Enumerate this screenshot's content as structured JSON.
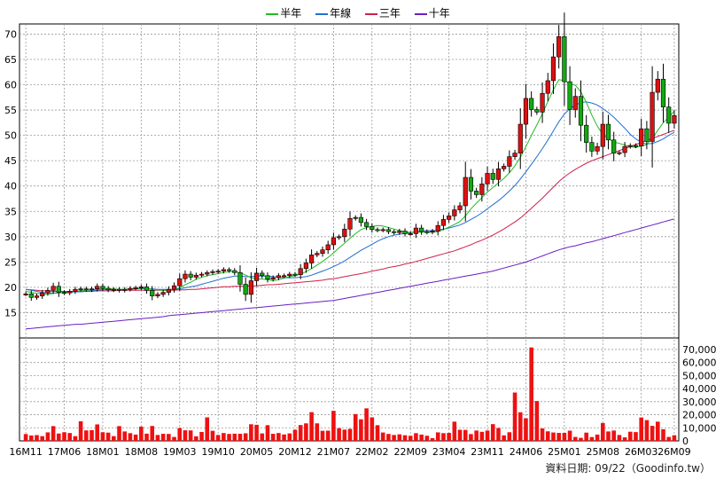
{
  "chart_data": {
    "type": "candlestick",
    "legend": [
      {
        "label": "半年",
        "color": "#22bb22"
      },
      {
        "label": "年線",
        "color": "#1f6fd0"
      },
      {
        "label": "三年",
        "color": "#d0204a"
      },
      {
        "label": "十年",
        "color": "#6a1fc0"
      }
    ],
    "price_axis": {
      "ylim": [
        10,
        72
      ],
      "ticks": [
        15,
        20,
        25,
        30,
        35,
        40,
        45,
        50,
        55,
        60,
        65,
        70
      ]
    },
    "volume_axis": {
      "ylim": [
        0,
        72000
      ],
      "ticks": [
        "0",
        "10,000",
        "20,000",
        "30,000",
        "40,000",
        "50,000",
        "60,000",
        "70,000"
      ],
      "tick_values": [
        0,
        10000,
        20000,
        30000,
        40000,
        50000,
        60000,
        70000
      ]
    },
    "x_labels": [
      "16M11",
      "17M06",
      "18M01",
      "18M08",
      "19M03",
      "19M10",
      "20M05",
      "20M12",
      "21M07",
      "22M02",
      "22M09",
      "23M04",
      "23M11",
      "24M06",
      "25M01",
      "25M08",
      "26M03",
      "26M09"
    ],
    "months": [
      "16M11",
      "16M12",
      "17M01",
      "17M02",
      "17M03",
      "17M04",
      "17M05",
      "17M06",
      "17M07",
      "17M08",
      "17M09",
      "17M10",
      "17M11",
      "17M12",
      "18M01",
      "18M02",
      "18M03",
      "18M04",
      "18M05",
      "18M06",
      "18M07",
      "18M08",
      "18M09",
      "18M10",
      "18M11",
      "18M12",
      "19M01",
      "19M02",
      "19M03",
      "19M04",
      "19M05",
      "19M06",
      "19M07",
      "19M08",
      "19M09",
      "19M10",
      "19M11",
      "19M12",
      "20M01",
      "20M02",
      "20M03",
      "20M04",
      "20M05",
      "20M06",
      "20M07",
      "20M08",
      "20M09",
      "20M10",
      "20M11",
      "20M12",
      "21M01",
      "21M02",
      "21M03",
      "21M04",
      "21M05",
      "21M06",
      "21M07",
      "21M08",
      "21M09",
      "21M10",
      "21M11",
      "21M12",
      "22M01",
      "22M02",
      "22M03",
      "22M04",
      "22M05",
      "22M06",
      "22M07",
      "22M08",
      "22M09",
      "22M10",
      "22M11",
      "22M12",
      "23M01",
      "23M02",
      "23M03",
      "23M04",
      "23M05",
      "23M06",
      "23M07",
      "23M08",
      "23M09",
      "23M10",
      "23M11",
      "23M12",
      "24M01",
      "24M02",
      "24M03",
      "24M04",
      "24M05",
      "24M06",
      "24M07",
      "24M08",
      "24M09",
      "24M10",
      "24M11",
      "24M12",
      "25M01",
      "25M02",
      "25M03",
      "25M04",
      "25M05",
      "25M06",
      "25M07",
      "25M08",
      "25M09",
      "25M10",
      "25M11",
      "25M12",
      "26M01",
      "26M02",
      "26M03",
      "26M04",
      "26M05",
      "26M06",
      "26M07",
      "26M08",
      "26M09"
    ],
    "close": [
      18.7,
      18.0,
      18.3,
      18.9,
      19.4,
      20.2,
      19.0,
      18.9,
      19.2,
      19.6,
      19.7,
      19.5,
      19.7,
      20.2,
      19.8,
      19.5,
      19.6,
      19.4,
      19.6,
      19.8,
      19.9,
      20.1,
      19.4,
      18.3,
      18.6,
      19.0,
      19.6,
      20.3,
      21.7,
      22.6,
      22.0,
      22.4,
      22.6,
      22.9,
      23.1,
      23.2,
      23.5,
      23.3,
      22.9,
      20.6,
      18.6,
      21.3,
      22.8,
      22.3,
      21.6,
      21.9,
      22.3,
      22.3,
      22.6,
      22.5,
      23.7,
      24.8,
      26.4,
      26.7,
      27.4,
      28.4,
      29.8,
      30.0,
      31.5,
      33.6,
      33.8,
      32.8,
      32.0,
      31.4,
      31.3,
      31.4,
      31.0,
      30.8,
      31.1,
      30.6,
      30.6,
      31.7,
      31.0,
      30.9,
      31.1,
      32.2,
      33.4,
      34.1,
      35.3,
      36.1,
      41.7,
      39.0,
      38.3,
      40.4,
      42.5,
      41.3,
      43.4,
      43.9,
      45.8,
      46.5,
      52.2,
      57.3,
      55.1,
      54.6,
      58.3,
      60.8,
      65.5,
      69.5,
      60.6,
      55.1,
      57.7,
      52.0,
      48.6,
      46.9,
      47.8,
      52.2,
      49.1,
      46.5,
      46.6,
      47.8,
      48.0,
      47.9,
      51.3,
      48.8,
      58.5,
      61.1,
      55.6,
      52.4,
      53.9
    ],
    "volume": [
      5200,
      4100,
      4400,
      3600,
      6500,
      11300,
      5600,
      6600,
      6000,
      3600,
      15000,
      8000,
      8200,
      12600,
      6600,
      6300,
      3600,
      11300,
      7200,
      5900,
      4800,
      10900,
      5500,
      11400,
      4500,
      5400,
      5300,
      3000,
      9800,
      8100,
      8000,
      3500,
      6800,
      18000,
      7700,
      4500,
      6000,
      5300,
      5500,
      5400,
      5800,
      12700,
      12300,
      5700,
      12000,
      5400,
      6000,
      4900,
      5700,
      8500,
      12100,
      13400,
      22000,
      13400,
      7700,
      7800,
      23000,
      9700,
      8600,
      9200,
      20500,
      16500,
      24900,
      18000,
      12000,
      6400,
      5300,
      4500,
      5000,
      4300,
      3900,
      5900,
      4800,
      3900,
      2100,
      6500,
      5900,
      6100,
      14700,
      8500,
      8400,
      5200,
      7900,
      6900,
      7900,
      12800,
      9800,
      4200,
      6600,
      37000,
      21900,
      17300,
      71500,
      30500,
      9500,
      7300,
      6400,
      6100,
      6100,
      7800,
      3000,
      2300,
      6300,
      2900,
      4800,
      13700,
      7200,
      7900,
      4500,
      2700,
      7000,
      6700,
      17900,
      15900,
      11500,
      14700,
      8900,
      3000,
      4300
    ],
    "ma_half_year": [
      19.2,
      19.0,
      18.8,
      18.7,
      18.6,
      18.8,
      18.9,
      19.0,
      19.1,
      19.2,
      19.3,
      19.4,
      19.5,
      19.6,
      19.7,
      19.7,
      19.7,
      19.6,
      19.6,
      19.7,
      19.7,
      19.8,
      19.8,
      19.6,
      19.5,
      19.4,
      19.4,
      19.6,
      19.9,
      20.5,
      21.0,
      21.6,
      22.0,
      22.3,
      22.5,
      22.7,
      22.9,
      23.1,
      23.1,
      22.9,
      22.4,
      21.9,
      21.7,
      21.6,
      21.5,
      21.3,
      21.5,
      21.8,
      22.1,
      22.3,
      22.6,
      23.1,
      23.7,
      24.4,
      25.1,
      25.9,
      26.8,
      27.8,
      28.7,
      29.7,
      30.6,
      31.4,
      31.8,
      32.0,
      32.2,
      32.1,
      31.8,
      31.5,
      31.2,
      31.0,
      30.8,
      30.9,
      30.9,
      30.9,
      30.9,
      31.0,
      31.4,
      31.9,
      32.4,
      33.0,
      34.1,
      35.5,
      36.6,
      37.7,
      38.8,
      39.7,
      40.6,
      41.5,
      42.6,
      44.0,
      45.7,
      47.8,
      50.0,
      52.1,
      54.3,
      56.7,
      59.0,
      61.0,
      60.8,
      60.2,
      59.9,
      58.6,
      56.5,
      54.0,
      51.8,
      50.2,
      49.3,
      48.7,
      48.4,
      48.1,
      47.8,
      47.6,
      47.9,
      48.2,
      49.4,
      51.0,
      52.5,
      53.6,
      54.8
    ],
    "ma_year": [
      19.6,
      19.4,
      19.2,
      19.0,
      18.9,
      18.9,
      18.9,
      19.0,
      19.0,
      19.1,
      19.1,
      19.2,
      19.3,
      19.4,
      19.5,
      19.5,
      19.6,
      19.6,
      19.6,
      19.6,
      19.7,
      19.7,
      19.7,
      19.7,
      19.6,
      19.6,
      19.6,
      19.6,
      19.7,
      19.9,
      20.1,
      20.3,
      20.6,
      20.9,
      21.2,
      21.5,
      21.8,
      22.0,
      22.2,
      22.2,
      22.1,
      22.1,
      22.2,
      22.2,
      22.2,
      22.1,
      22.0,
      21.9,
      21.9,
      21.9,
      22.0,
      22.1,
      22.4,
      22.8,
      23.2,
      23.6,
      24.1,
      24.6,
      25.2,
      25.9,
      26.6,
      27.3,
      27.9,
      28.5,
      29.1,
      29.6,
      30.0,
      30.3,
      30.5,
      30.6,
      30.8,
      31.0,
      31.1,
      31.2,
      31.2,
      31.3,
      31.5,
      31.7,
      32.0,
      32.3,
      32.8,
      33.4,
      34.0,
      34.7,
      35.5,
      36.3,
      37.1,
      38.0,
      39.0,
      40.1,
      41.4,
      42.8,
      44.3,
      45.8,
      47.4,
      49.1,
      50.9,
      52.7,
      54.2,
      55.3,
      56.0,
      56.5,
      56.6,
      56.4,
      56.0,
      55.3,
      54.5,
      53.6,
      52.5,
      51.4,
      50.2,
      49.3,
      48.6,
      48.3,
      48.4,
      48.8,
      49.3,
      50.0,
      50.6
    ],
    "ma_three_year": [
      19.6,
      19.5,
      19.4,
      19.3,
      19.3,
      19.2,
      19.2,
      19.2,
      19.2,
      19.2,
      19.2,
      19.2,
      19.2,
      19.3,
      19.3,
      19.3,
      19.3,
      19.4,
      19.4,
      19.4,
      19.4,
      19.4,
      19.4,
      19.4,
      19.4,
      19.4,
      19.4,
      19.4,
      19.5,
      19.5,
      19.6,
      19.6,
      19.7,
      19.8,
      19.9,
      20.0,
      20.1,
      20.1,
      20.2,
      20.2,
      20.2,
      20.3,
      20.3,
      20.4,
      20.5,
      20.5,
      20.6,
      20.7,
      20.8,
      20.9,
      21.0,
      21.1,
      21.2,
      21.3,
      21.4,
      21.6,
      21.7,
      21.9,
      22.1,
      22.3,
      22.5,
      22.7,
      22.9,
      23.2,
      23.4,
      23.6,
      23.9,
      24.1,
      24.3,
      24.6,
      24.8,
      25.1,
      25.4,
      25.7,
      26.0,
      26.3,
      26.6,
      26.9,
      27.2,
      27.6,
      28.0,
      28.4,
      28.9,
      29.3,
      29.8,
      30.3,
      30.9,
      31.5,
      32.2,
      32.9,
      33.7,
      34.6,
      35.6,
      36.6,
      37.6,
      38.7,
      39.8,
      40.9,
      41.8,
      42.6,
      43.3,
      43.9,
      44.5,
      45.0,
      45.4,
      45.8,
      46.2,
      46.6,
      47.0,
      47.4,
      47.8,
      48.2,
      48.6,
      49.0,
      49.4,
      49.8,
      50.2,
      50.6,
      51.0
    ],
    "ma_ten_year": [
      11.8,
      11.9,
      12.0,
      12.1,
      12.2,
      12.3,
      12.4,
      12.5,
      12.6,
      12.7,
      12.7,
      12.8,
      12.9,
      13.0,
      13.1,
      13.2,
      13.3,
      13.4,
      13.5,
      13.6,
      13.7,
      13.8,
      13.9,
      14.0,
      14.1,
      14.2,
      14.4,
      14.5,
      14.6,
      14.7,
      14.8,
      14.9,
      15.0,
      15.1,
      15.2,
      15.3,
      15.4,
      15.5,
      15.6,
      15.7,
      15.8,
      15.9,
      16.0,
      16.1,
      16.2,
      16.3,
      16.4,
      16.5,
      16.6,
      16.7,
      16.8,
      16.9,
      17.0,
      17.1,
      17.2,
      17.3,
      17.4,
      17.6,
      17.8,
      18.0,
      18.2,
      18.4,
      18.6,
      18.8,
      19.0,
      19.2,
      19.4,
      19.6,
      19.8,
      20.0,
      20.2,
      20.4,
      20.6,
      20.8,
      21.0,
      21.2,
      21.4,
      21.6,
      21.8,
      22.0,
      22.2,
      22.4,
      22.6,
      22.8,
      23.0,
      23.2,
      23.5,
      23.8,
      24.1,
      24.4,
      24.7,
      25.0,
      25.4,
      25.8,
      26.2,
      26.6,
      27.0,
      27.4,
      27.7,
      28.0,
      28.2,
      28.5,
      28.8,
      29.0,
      29.3,
      29.6,
      29.9,
      30.2,
      30.5,
      30.8,
      31.1,
      31.4,
      31.7,
      32.0,
      32.3,
      32.6,
      32.9,
      33.2,
      33.5
    ]
  },
  "footer": "資料日期: 09/22（Goodinfo.tw）"
}
